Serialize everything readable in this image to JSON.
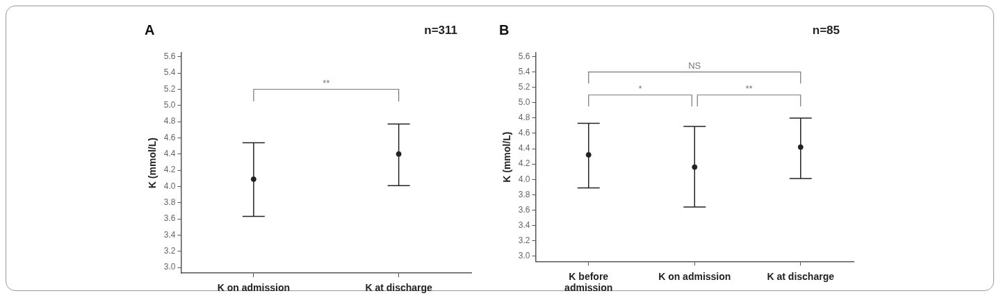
{
  "chart_data": [
    {
      "type": "scatter",
      "title": "A",
      "ylabel": "K (mmol/L)",
      "categories": [
        "K on admission",
        "K at discharge"
      ],
      "values": [
        4.09,
        4.4
      ],
      "errors": [
        [
          3.63,
          4.54
        ],
        [
          4.01,
          4.77
        ]
      ],
      "color": "#222222",
      "marker": "circle",
      "ylim": [
        2.93,
        5.65
      ],
      "yticks": [
        {
          "value": 3.0,
          "label": "3.0"
        },
        3.2,
        3.4,
        3.6,
        3.8,
        {
          "value": 4.0,
          "label": "4.0"
        },
        4.2,
        4.4,
        4.6,
        4.8,
        {
          "value": 5.0,
          "label": "5.0"
        },
        5.2,
        5.4,
        5.6
      ],
      "annotations": [
        "n=311",
        "**"
      ]
    },
    {
      "type": "scatter",
      "title": "B",
      "ylabel": "K (mmol/L)",
      "categories": [
        "K before admission",
        "K on admission",
        "K at discharge"
      ],
      "values": [
        4.32,
        4.16,
        4.42
      ],
      "errors": [
        [
          3.89,
          4.73
        ],
        [
          3.64,
          4.69
        ],
        [
          4.01,
          4.8
        ]
      ],
      "color": "#222222",
      "marker": "circle",
      "ylim": [
        2.93,
        5.65
      ],
      "yticks": [
        {
          "value": 3.0,
          "label": "3.0"
        },
        3.2,
        3.4,
        3.6,
        3.8,
        {
          "value": 4.0,
          "label": "4.0"
        },
        4.2,
        4.4,
        4.6,
        4.8,
        {
          "value": 5.0,
          "label": "5.0"
        },
        5.2,
        5.4,
        5.6
      ],
      "annotations": [
        "n=85",
        "NS",
        "*",
        "**"
      ]
    }
  ]
}
